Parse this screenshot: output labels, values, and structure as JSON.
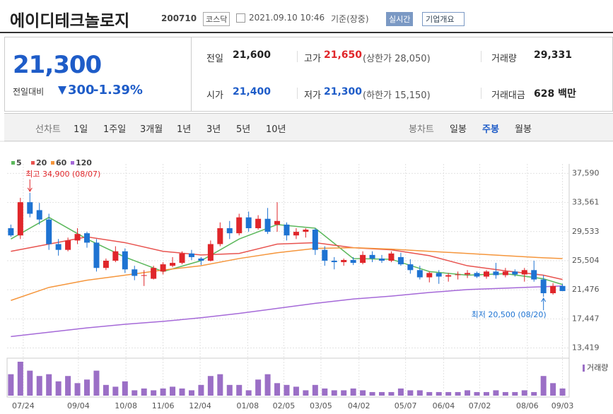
{
  "header": {
    "title": "에이디테크놀로지",
    "code": "200710",
    "market": "코스닥",
    "timestamp": "2021.09.10 10:46",
    "basis": "기준(장중)",
    "realtime": "실시간",
    "company": "기업개요"
  },
  "quote": {
    "price": "21,300",
    "change_label": "전일대비",
    "change": "300",
    "change_pct": "-1.39%",
    "items": [
      {
        "label": "전일",
        "value": "21,600"
      },
      {
        "label": "고가",
        "value": "21,650",
        "note": "(상한가 28,050)"
      },
      {
        "label": "거래량",
        "value": "29,331"
      },
      {
        "label": "시가",
        "value": "21,400"
      },
      {
        "label": "저가",
        "value": "21,300",
        "note": "(하한가 15,150)"
      },
      {
        "label": "거래대금",
        "value": "628 백만"
      }
    ]
  },
  "tabs": {
    "line_label": "선차트",
    "line": [
      "1일",
      "1주일",
      "3개월",
      "1년",
      "3년",
      "5년",
      "10년"
    ],
    "candle_label": "봉차트",
    "candle": [
      "일봉",
      "주봉",
      "월봉"
    ],
    "selected": "주봉"
  },
  "chart_data": {
    "type": "candlestick",
    "up_color": "#e0262a",
    "down_color": "#1e73d2",
    "open": [
      30000,
      29000,
      33600,
      32500,
      31200,
      27800,
      27000,
      28300,
      29300,
      28000,
      24500,
      25500,
      26800,
      24300,
      23400,
      23000,
      24000,
      24800,
      25200,
      26500,
      25800,
      25500,
      27800,
      30000,
      29300,
      31500,
      30000,
      31300,
      30500,
      30500,
      29000,
      29500,
      29800,
      27000,
      25500,
      25300,
      25600,
      25200,
      26300,
      25800,
      25500,
      26000,
      25000,
      24200,
      23200,
      23800,
      23300,
      23500,
      23600,
      23800,
      23300,
      24000,
      23500,
      24000,
      23600,
      24200,
      22900,
      21000,
      22000
    ],
    "high": [
      30500,
      34200,
      34900,
      33500,
      32000,
      28500,
      28700,
      30000,
      29500,
      28500,
      25800,
      27500,
      27200,
      24800,
      24200,
      24800,
      25300,
      26000,
      26800,
      27000,
      26000,
      28300,
      30800,
      31000,
      32000,
      32300,
      31800,
      32800,
      33600,
      30800,
      30000,
      30000,
      30000,
      27500,
      26000,
      25800,
      26000,
      26800,
      26800,
      26300,
      26800,
      26600,
      25700,
      24800,
      24000,
      24200,
      23800,
      24000,
      24200,
      24000,
      24200,
      25200,
      24500,
      24300,
      24500,
      25500,
      23500,
      22400,
      22300
    ],
    "low": [
      28800,
      28500,
      31500,
      30500,
      27000,
      26200,
      26800,
      27800,
      27300,
      24000,
      24200,
      25300,
      23800,
      22800,
      22000,
      22900,
      23600,
      24600,
      25000,
      25600,
      24900,
      25400,
      27500,
      28500,
      29000,
      29500,
      29800,
      29200,
      29500,
      28300,
      28500,
      28700,
      26300,
      24800,
      24300,
      24800,
      24900,
      25000,
      25300,
      25200,
      25300,
      24800,
      23700,
      22900,
      22500,
      22300,
      22600,
      22900,
      23100,
      23100,
      23000,
      23000,
      23200,
      23300,
      22600,
      22600,
      20500,
      20800,
      21300
    ],
    "close": [
      29000,
      33600,
      32000,
      31200,
      27800,
      27000,
      28300,
      29200,
      28000,
      24500,
      25500,
      26800,
      24300,
      23400,
      23500,
      24500,
      25000,
      25200,
      26500,
      26000,
      25500,
      27800,
      30000,
      29300,
      31500,
      30000,
      31300,
      29500,
      31000,
      29000,
      29500,
      29800,
      27000,
      25500,
      25300,
      25600,
      25200,
      26300,
      25800,
      25500,
      26500,
      25000,
      24200,
      23200,
      23800,
      23300,
      23500,
      23600,
      23800,
      23300,
      24000,
      23500,
      24000,
      23600,
      24200,
      22900,
      21000,
      22000,
      21300
    ],
    "volume": {
      "name": "거래량",
      "color": "#9b6fc6",
      "values": [
        60,
        95,
        70,
        55,
        60,
        40,
        55,
        35,
        45,
        70,
        30,
        25,
        40,
        15,
        20,
        15,
        20,
        25,
        20,
        15,
        30,
        55,
        60,
        30,
        30,
        15,
        45,
        60,
        35,
        30,
        25,
        15,
        30,
        20,
        15,
        15,
        20,
        15,
        10,
        10,
        10,
        20,
        15,
        15,
        10,
        10,
        10,
        10,
        15,
        10,
        10,
        15,
        10,
        10,
        15,
        10,
        55,
        35,
        20
      ]
    },
    "ma_x": [
      0,
      4,
      8,
      12,
      16,
      20,
      24,
      28,
      32,
      36,
      40,
      44,
      48,
      52,
      56,
      58
    ],
    "moving_averages": [
      {
        "name": "5",
        "color": "#5cb85c",
        "values": [
          28500,
          31500,
          28500,
          26000,
          24000,
          25500,
          28500,
          30500,
          30000,
          25800,
          25700,
          24000,
          23500,
          23700,
          23000,
          22200
        ]
      },
      {
        "name": "20",
        "color": "#e8534f",
        "values": [
          26800,
          27800,
          28800,
          28000,
          26800,
          26300,
          26500,
          27800,
          28000,
          27300,
          27000,
          26200,
          24800,
          24100,
          23500,
          22900
        ]
      },
      {
        "name": "60",
        "color": "#f5963c",
        "values": [
          20000,
          21800,
          22800,
          23500,
          24200,
          24800,
          25800,
          26600,
          27200,
          27300,
          27100,
          26800,
          26500,
          26200,
          25900,
          25800
        ]
      },
      {
        "name": "120",
        "color": "#a569d8",
        "values": [
          15000,
          15600,
          16200,
          16700,
          17100,
          17600,
          18200,
          18900,
          19600,
          20200,
          20600,
          21100,
          21500,
          21700,
          21900,
          22000
        ]
      }
    ],
    "xlim": [
      -0.4,
      58.7
    ],
    "ylim": [
      12200,
      38900
    ],
    "yticks": [
      {
        "value": 37590,
        "label": "37,590"
      },
      {
        "value": 33561,
        "label": "33,561"
      },
      {
        "value": 29533,
        "label": "29,533"
      },
      {
        "value": 25504,
        "label": "25,504"
      },
      {
        "value": 21476,
        "label": "21,476"
      },
      {
        "value": 17447,
        "label": "17,447"
      },
      {
        "value": 13419,
        "label": "13,419"
      }
    ],
    "xticks": [
      {
        "value": 1.3,
        "label": "07/24"
      },
      {
        "value": 7.1,
        "label": "09/04"
      },
      {
        "value": 12.1,
        "label": "10/08"
      },
      {
        "value": 16,
        "label": "11/06"
      },
      {
        "value": 19.9,
        "label": "12/04"
      },
      {
        "value": 24.9,
        "label": "01/08"
      },
      {
        "value": 28.7,
        "label": "02/05"
      },
      {
        "value": 32.6,
        "label": "03/05"
      },
      {
        "value": 36.6,
        "label": "04/02"
      },
      {
        "value": 41.5,
        "label": "05/07"
      },
      {
        "value": 45.5,
        "label": "06/04"
      },
      {
        "value": 49.3,
        "label": "07/02"
      },
      {
        "value": 54.3,
        "label": "08/06"
      },
      {
        "value": 58,
        "label": "09/03"
      }
    ],
    "annotations": [
      {
        "text": "최고 34,900 (08/07)",
        "x": 2,
        "y": 34900,
        "color": "#e0262a"
      },
      {
        "text": "최저 20,500 (08/20)",
        "x": 56,
        "y": 20500,
        "color": "#1e73d2"
      }
    ],
    "grid": true
  }
}
